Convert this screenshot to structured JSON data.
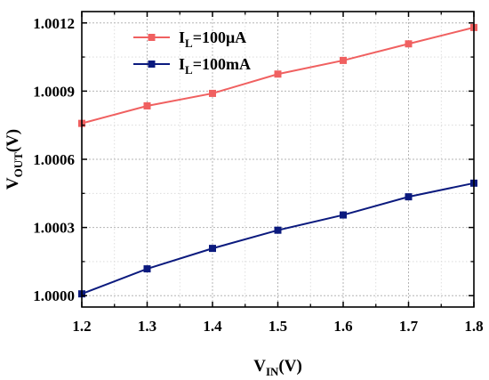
{
  "chart_data": {
    "type": "line",
    "xlabel": {
      "main": "V",
      "sub": "IN",
      "suffix": "(V)"
    },
    "ylabel": {
      "main": "V",
      "sub": "OUT",
      "suffix": "(V)"
    },
    "xlim": [
      1.2,
      1.8
    ],
    "ylim": [
      0.99995,
      1.00125
    ],
    "x_ticks": [
      "1.2",
      "1.3",
      "1.4",
      "1.5",
      "1.6",
      "1.7",
      "1.8"
    ],
    "y_ticks": [
      "1.0000",
      "1.0003",
      "1.0006",
      "1.0009",
      "1.0012"
    ],
    "grid": true,
    "legend_position": "top-left",
    "x": [
      1.2,
      1.3,
      1.4,
      1.5,
      1.6,
      1.7,
      1.8
    ],
    "series": [
      {
        "name": {
          "main": "I",
          "sub": "L",
          "suffix": "=100μA"
        },
        "color": "#f06060",
        "values": [
          1.000758,
          1.000835,
          1.00089,
          1.000975,
          1.001035,
          1.001108,
          1.00118
        ]
      },
      {
        "name": {
          "main": "I",
          "sub": "L",
          "suffix": "=100mA"
        },
        "color": "#0b1a7e",
        "values": [
          1.000008,
          1.000118,
          1.000208,
          1.000288,
          1.000355,
          1.000435,
          1.000495
        ]
      }
    ]
  }
}
